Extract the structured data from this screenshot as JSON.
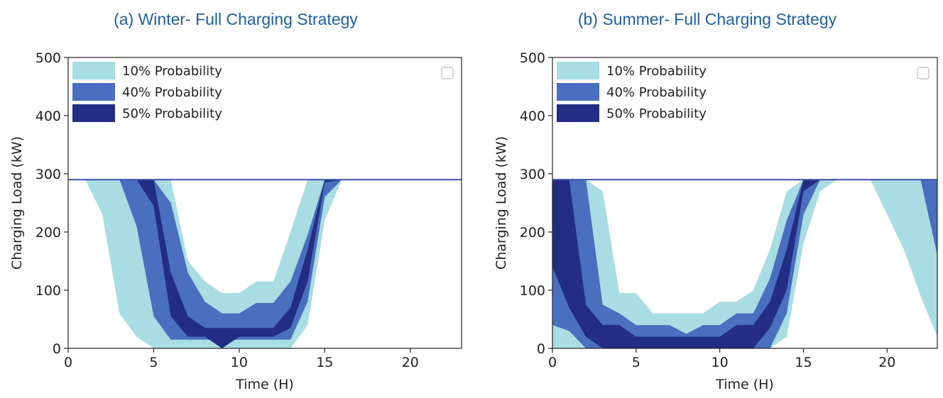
{
  "colors": {
    "p10": "#a8dde3",
    "p40": "#4a6fbf",
    "p50": "#232d83",
    "line": "#3a4fa6",
    "title": "#1f5fa0"
  },
  "chart_data": [
    {
      "type": "area",
      "title": "(a) Winter- Full Charging Strategy",
      "xlabel": "Time (H)",
      "ylabel": "Charging Load (kW)",
      "xlim": [
        0,
        23
      ],
      "ylim": [
        0,
        500
      ],
      "xticks": [
        0,
        5,
        10,
        15,
        20
      ],
      "yticks": [
        0,
        100,
        200,
        300,
        400,
        500
      ],
      "legend_position": "top-left",
      "legend": [
        "10% Probability",
        "40% Probability",
        "50% Probability"
      ],
      "x": [
        0,
        1,
        2,
        3,
        4,
        5,
        6,
        7,
        8,
        9,
        10,
        11,
        12,
        13,
        14,
        15,
        16,
        17,
        18,
        19,
        20,
        21,
        22,
        23
      ],
      "series": [
        {
          "name": "10% Probability",
          "upper": [
            290,
            290,
            290,
            290,
            290,
            290,
            290,
            150,
            115,
            95,
            95,
            115,
            115,
            200,
            290,
            290,
            290,
            290,
            290,
            290,
            290,
            290,
            290,
            290
          ],
          "lower": [
            290,
            290,
            230,
            60,
            20,
            0,
            0,
            0,
            0,
            0,
            0,
            0,
            0,
            0,
            40,
            220,
            290,
            290,
            290,
            290,
            290,
            290,
            290,
            290
          ]
        },
        {
          "name": "40% Probability",
          "upper": [
            290,
            290,
            290,
            290,
            290,
            290,
            250,
            130,
            80,
            60,
            60,
            78,
            78,
            115,
            195,
            290,
            290,
            290,
            290,
            290,
            290,
            290,
            290,
            290
          ],
          "lower": [
            290,
            290,
            290,
            290,
            210,
            55,
            15,
            15,
            15,
            15,
            15,
            15,
            15,
            15,
            80,
            260,
            290,
            290,
            290,
            290,
            290,
            290,
            290,
            290
          ]
        },
        {
          "name": "50% Probability",
          "upper": [
            290,
            290,
            290,
            290,
            290,
            290,
            130,
            55,
            35,
            35,
            35,
            35,
            35,
            70,
            170,
            290,
            290,
            290,
            290,
            290,
            290,
            290,
            290,
            290
          ],
          "lower": [
            290,
            290,
            290,
            290,
            290,
            245,
            55,
            20,
            20,
            0,
            20,
            20,
            20,
            35,
            115,
            285,
            290,
            290,
            290,
            290,
            290,
            290,
            290,
            290
          ]
        }
      ],
      "line_value": 290
    },
    {
      "type": "area",
      "title": "(b) Summer- Full Charging Strategy",
      "xlabel": "Time (H)",
      "ylabel": "Charging Load (kW)",
      "xlim": [
        0,
        23
      ],
      "ylim": [
        0,
        500
      ],
      "xticks": [
        0,
        5,
        10,
        15,
        20
      ],
      "yticks": [
        0,
        100,
        200,
        300,
        400,
        500
      ],
      "legend_position": "top-left",
      "legend": [
        "10% Probability",
        "40% Probability",
        "50% Probability"
      ],
      "x": [
        0,
        1,
        2,
        3,
        4,
        5,
        6,
        7,
        8,
        9,
        10,
        11,
        12,
        13,
        14,
        15,
        16,
        17,
        18,
        19,
        20,
        21,
        22,
        23
      ],
      "series": [
        {
          "name": "10% Probability",
          "upper": [
            290,
            290,
            290,
            270,
            95,
            95,
            60,
            60,
            60,
            60,
            80,
            80,
            100,
            170,
            270,
            290,
            290,
            290,
            290,
            290,
            290,
            290,
            290,
            290
          ],
          "lower": [
            0,
            0,
            0,
            0,
            0,
            0,
            0,
            0,
            0,
            0,
            0,
            0,
            0,
            0,
            20,
            180,
            270,
            290,
            290,
            290,
            230,
            170,
            90,
            20
          ]
        },
        {
          "name": "40% Probability",
          "upper": [
            290,
            290,
            290,
            75,
            60,
            40,
            40,
            40,
            25,
            40,
            40,
            60,
            60,
            120,
            220,
            290,
            290,
            290,
            290,
            290,
            290,
            290,
            290,
            290
          ],
          "lower": [
            40,
            30,
            0,
            0,
            0,
            0,
            0,
            0,
            0,
            0,
            0,
            0,
            0,
            0,
            60,
            230,
            290,
            290,
            290,
            290,
            290,
            290,
            290,
            160
          ]
        },
        {
          "name": "50% Probability",
          "upper": [
            290,
            290,
            75,
            40,
            40,
            20,
            20,
            20,
            20,
            20,
            20,
            40,
            40,
            80,
            170,
            290,
            290,
            290,
            290,
            290,
            290,
            290,
            290,
            290
          ],
          "lower": [
            140,
            70,
            20,
            0,
            0,
            0,
            0,
            0,
            0,
            0,
            0,
            0,
            0,
            35,
            100,
            270,
            290,
            290,
            290,
            290,
            290,
            290,
            290,
            290
          ]
        }
      ],
      "line_value": 290
    }
  ]
}
